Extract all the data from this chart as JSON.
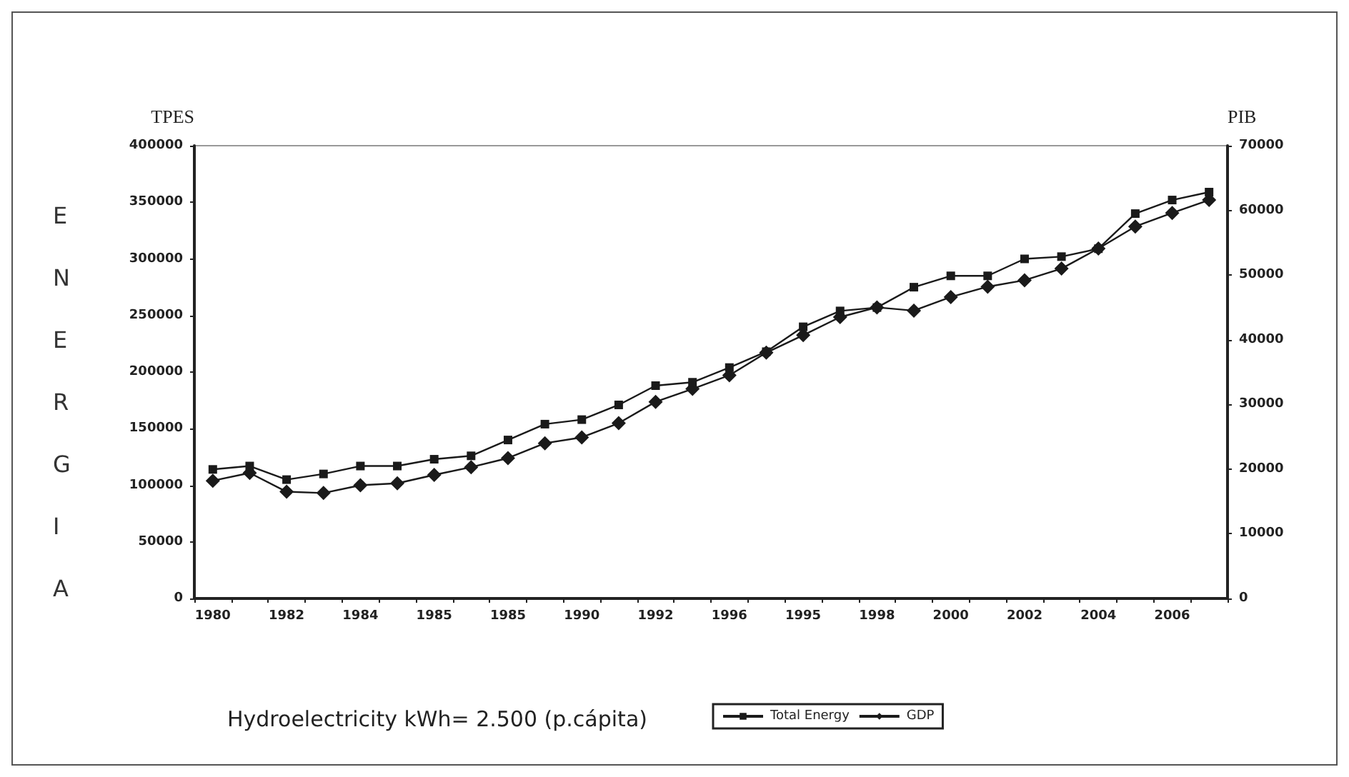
{
  "chart_data": {
    "type": "line",
    "ylabel": "TPES",
    "y2label": "PIB",
    "annotations": [
      "ENERGIA",
      "Hydroelectricity kWh= 2.500 (p.cápita)"
    ],
    "categories": [
      "1980",
      null,
      "1982",
      null,
      "1984",
      null,
      "1985",
      null,
      "1985",
      null,
      "1990",
      null,
      "1992",
      null,
      "1996",
      null,
      "1995",
      null,
      "1998",
      null,
      "2000",
      null,
      "2002",
      null,
      "2004",
      null,
      "2006",
      null
    ],
    "series": [
      {
        "name": "Total Energy",
        "color": "#1a1a1a",
        "marker": "square",
        "values": [
          114000,
          117000,
          105000,
          110000,
          117000,
          117000,
          123000,
          126000,
          140000,
          154000,
          158000,
          171000,
          188000,
          191000,
          204000,
          218000,
          240000,
          254000,
          257000,
          275000,
          285000,
          285000,
          300000,
          302000,
          309000,
          340000,
          352000,
          359000
        ]
      },
      {
        "name": "GDP",
        "color": "#1a1a1a",
        "marker": "diamond",
        "axis": "y2",
        "values": [
          18200,
          19400,
          16500,
          16300,
          17500,
          17800,
          19100,
          20300,
          21700,
          24000,
          24900,
          27100,
          30400,
          32400,
          34500,
          38000,
          40700,
          43500,
          45000,
          44500,
          46600,
          48200,
          49200,
          51000,
          54100,
          57500,
          59600,
          61600
        ]
      }
    ],
    "ylim": [
      0,
      400000
    ],
    "yticks": [
      0,
      50000,
      100000,
      150000,
      200000,
      250000,
      300000,
      350000,
      400000
    ],
    "y2lim": [
      0,
      70000
    ],
    "y2ticks": [
      0,
      10000,
      20000,
      30000,
      40000,
      50000,
      60000,
      70000
    ],
    "grid": false,
    "legend": "bottom",
    "line_style": "solid"
  }
}
